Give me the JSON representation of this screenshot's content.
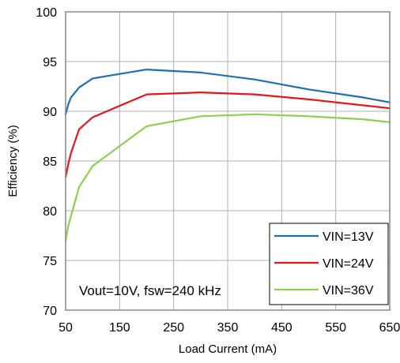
{
  "chart_data": {
    "type": "line",
    "title": "",
    "xlabel": "Load Current (mA)",
    "ylabel": "Efficiency (%)",
    "xlim": [
      50,
      650
    ],
    "ylim": [
      70,
      100
    ],
    "xticks": [
      50,
      150,
      250,
      350,
      450,
      550,
      650
    ],
    "yticks": [
      70,
      75,
      80,
      85,
      90,
      95,
      100
    ],
    "grid": true,
    "legend_position": "bottom-right",
    "annotation": "Vout=10V, fsw=240 kHz",
    "series": [
      {
        "name": "VIN=13V",
        "color": "#1f6fb4",
        "x": [
          50,
          55,
          60,
          75,
          100,
          200,
          300,
          400,
          500,
          600,
          650
        ],
        "y": [
          89.7,
          90.7,
          91.4,
          92.4,
          93.3,
          94.2,
          93.9,
          93.2,
          92.2,
          91.4,
          90.9
        ]
      },
      {
        "name": "VIN=24V",
        "color": "#e8141b",
        "x": [
          50,
          55,
          60,
          75,
          100,
          200,
          300,
          400,
          500,
          600,
          650
        ],
        "y": [
          83.4,
          84.7,
          85.8,
          88.2,
          89.4,
          91.7,
          91.9,
          91.7,
          91.2,
          90.6,
          90.3
        ]
      },
      {
        "name": "VIN=36V",
        "color": "#8dcf4e",
        "x": [
          50,
          55,
          75,
          100,
          200,
          300,
          400,
          500,
          600,
          650
        ],
        "y": [
          77.0,
          78.5,
          82.4,
          84.5,
          88.5,
          89.5,
          89.7,
          89.5,
          89.2,
          88.9
        ]
      }
    ]
  }
}
